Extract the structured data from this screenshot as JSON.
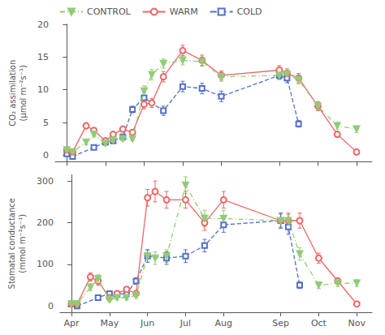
{
  "chart_data": [
    {
      "type": "line",
      "ylabel": "CO₂ assimilation\n(µmol m⁻²s⁻¹)",
      "xlim": [
        -0.3,
        7.9
      ],
      "xticks": [
        0,
        1,
        2,
        3,
        4,
        5.5,
        6.5,
        7.5
      ],
      "ylim": [
        -1,
        20
      ],
      "yticks": [
        0,
        5,
        10,
        15,
        20
      ],
      "tick_labels": "y",
      "grid": false,
      "legend": "upper left",
      "series": [
        {
          "name": "CONTROL",
          "color": "#91cc75",
          "marker": "filled_triangle_down",
          "line_style": "dashdot",
          "x": [
            0.0,
            0.15,
            0.5,
            0.7,
            1.0,
            1.2,
            1.45,
            1.7,
            2.0,
            2.2,
            2.5,
            3.0,
            3.5,
            4.0,
            5.5,
            5.7,
            6.0,
            6.5,
            7.0,
            7.5
          ],
          "values": [
            0.8,
            0.5,
            2.0,
            3.2,
            1.8,
            2.3,
            2.5,
            2.5,
            9.8,
            12.3,
            14.0,
            14.5,
            14.3,
            12.0,
            12.2,
            12.4,
            11.5,
            7.5,
            4.5,
            4.0
          ],
          "errors": [
            0.3,
            0.3,
            0.4,
            0.4,
            0.3,
            0.3,
            0.3,
            0.3,
            0.8,
            0.8,
            0.7,
            0.7,
            0.7,
            0.7,
            0.6,
            0.6,
            0.6,
            0.6,
            0.5,
            0.5
          ]
        },
        {
          "name": "WARM",
          "color": "#ee6666",
          "marker": "open_circle",
          "line_style": "solid",
          "x": [
            0.0,
            0.15,
            0.5,
            0.7,
            1.0,
            1.2,
            1.45,
            1.7,
            2.0,
            2.2,
            2.5,
            3.0,
            3.5,
            4.0,
            5.5,
            5.7,
            6.0,
            6.5,
            7.0,
            7.5
          ],
          "values": [
            0.8,
            0.5,
            4.5,
            3.8,
            2.2,
            3.2,
            4.0,
            3.5,
            7.8,
            8.0,
            12.0,
            16.0,
            14.5,
            12.2,
            13.0,
            12.5,
            11.8,
            7.5,
            3.2,
            0.5
          ],
          "errors": [
            0.3,
            0.3,
            0.4,
            0.4,
            0.3,
            0.3,
            0.4,
            0.3,
            0.7,
            0.7,
            0.8,
            0.8,
            0.8,
            0.7,
            0.7,
            0.7,
            0.7,
            0.7,
            0.4,
            0.3
          ]
        },
        {
          "name": "COLD",
          "color": "#5470c6",
          "marker": "open_square",
          "line_style": "dashed",
          "x": [
            0.0,
            0.15,
            0.7,
            1.0,
            1.2,
            1.45,
            1.7,
            2.0,
            2.5,
            3.0,
            3.5,
            4.0,
            5.5,
            5.7,
            6.0
          ],
          "values": [
            0.2,
            -0.2,
            1.2,
            2.0,
            2.2,
            2.8,
            7.0,
            8.8,
            6.8,
            10.5,
            10.2,
            9.0,
            12.2,
            11.8,
            4.8
          ],
          "errors": [
            0.3,
            0.3,
            0.3,
            0.3,
            0.3,
            0.3,
            0.5,
            0.8,
            0.7,
            0.8,
            0.8,
            0.8,
            0.6,
            0.7,
            0.5
          ]
        }
      ]
    },
    {
      "type": "line",
      "ylabel": "Stomatal conductance\n(mmol m⁻²s⁻¹)",
      "xlim": [
        -0.3,
        7.9
      ],
      "xticks": [
        {
          "value": 0,
          "label": "Apr"
        },
        {
          "value": 1,
          "label": "May"
        },
        {
          "value": 2,
          "label": "Jun"
        },
        {
          "value": 3,
          "label": "Jul"
        },
        {
          "value": 4,
          "label": "Aug"
        },
        {
          "value": 5.5,
          "label": "Sep"
        },
        {
          "value": 6.5,
          "label": "Oct"
        },
        {
          "value": 7.5,
          "label": "Nov"
        }
      ],
      "ylim": [
        -15,
        315
      ],
      "yticks": [
        0,
        100,
        200,
        300
      ],
      "grid": false,
      "series": [
        {
          "name": "CONTROL",
          "color": "#91cc75",
          "marker": "filled_triangle_down",
          "line_style": "dashdot",
          "x": [
            0.0,
            0.15,
            0.5,
            0.7,
            1.0,
            1.2,
            1.45,
            1.7,
            2.0,
            2.2,
            2.5,
            3.0,
            3.5,
            4.0,
            5.5,
            5.7,
            6.0,
            6.5,
            7.0,
            7.5
          ],
          "values": [
            5,
            5,
            45,
            65,
            15,
            20,
            20,
            25,
            120,
            115,
            120,
            290,
            210,
            210,
            205,
            205,
            125,
            50,
            55,
            55
          ],
          "errors": [
            3,
            3,
            8,
            10,
            5,
            5,
            5,
            5,
            15,
            15,
            15,
            20,
            20,
            20,
            15,
            15,
            15,
            8,
            8,
            8
          ]
        },
        {
          "name": "WARM",
          "color": "#ee6666",
          "marker": "open_circle",
          "line_style": "solid",
          "x": [
            0.0,
            0.15,
            0.5,
            0.7,
            1.0,
            1.2,
            1.45,
            1.7,
            2.0,
            2.2,
            2.5,
            3.0,
            3.5,
            4.0,
            5.5,
            5.7,
            6.0,
            6.5,
            7.0,
            7.5
          ],
          "values": [
            5,
            5,
            70,
            60,
            20,
            30,
            40,
            30,
            260,
            275,
            255,
            255,
            200,
            255,
            205,
            205,
            205,
            115,
            60,
            5
          ],
          "errors": [
            3,
            3,
            10,
            10,
            5,
            5,
            6,
            5,
            20,
            25,
            20,
            20,
            18,
            20,
            18,
            18,
            18,
            12,
            8,
            3
          ]
        },
        {
          "name": "COLD",
          "color": "#5470c6",
          "marker": "open_square",
          "line_style": "dashed",
          "x": [
            0.0,
            0.15,
            0.7,
            1.0,
            1.2,
            1.45,
            1.7,
            2.0,
            2.5,
            3.0,
            3.5,
            4.0,
            5.5,
            5.7,
            6.0
          ],
          "values": [
            5,
            0,
            20,
            30,
            28,
            30,
            60,
            120,
            115,
            120,
            145,
            195,
            205,
            190,
            50
          ],
          "errors": [
            3,
            3,
            5,
            5,
            5,
            5,
            8,
            15,
            15,
            15,
            15,
            18,
            18,
            18,
            8
          ]
        }
      ]
    }
  ]
}
